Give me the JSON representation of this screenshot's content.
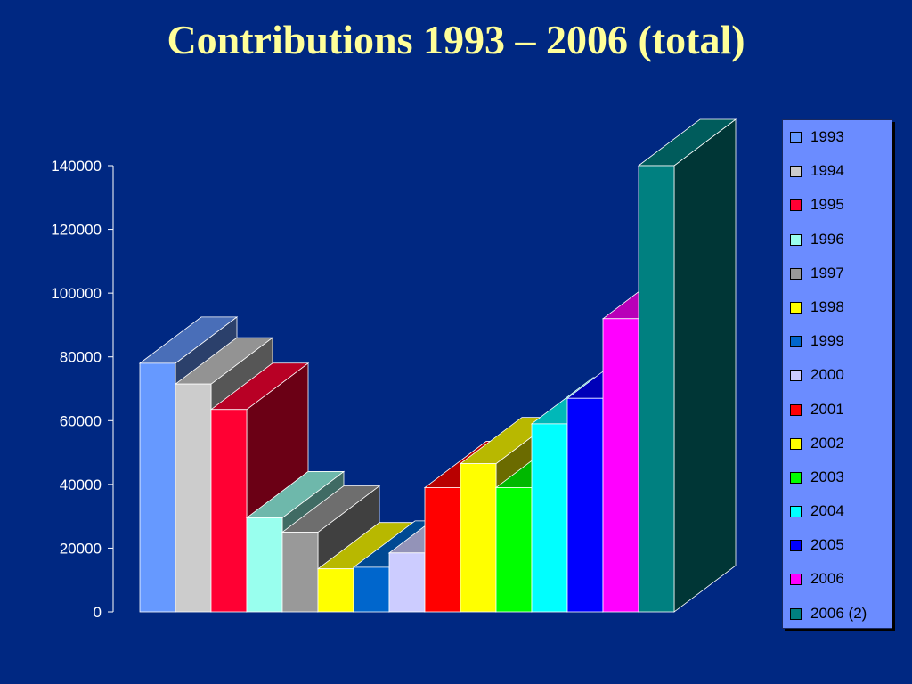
{
  "chart_data": {
    "type": "bar",
    "title": "Contributions 1993 – 2006 (total)",
    "categories": [
      "1993",
      "1994",
      "1995",
      "1996",
      "1997",
      "1998",
      "1999",
      "2000",
      "2001",
      "2002",
      "2003",
      "2004",
      "2005",
      "2006",
      "2006 (2)"
    ],
    "values": [
      78000,
      71500,
      63500,
      29500,
      25000,
      13500,
      14000,
      18500,
      39000,
      46500,
      39000,
      59000,
      67000,
      92000,
      140000
    ],
    "colors": [
      "#6699FF",
      "#CCCCCC",
      "#FF0033",
      "#99FFEE",
      "#999999",
      "#FFFF00",
      "#0066CC",
      "#CCCCFF",
      "#FF0000",
      "#FFFF00",
      "#00FF00",
      "#00FFFF",
      "#0000FF",
      "#FF00FF",
      "#008080"
    ],
    "ylim": [
      0,
      140000
    ],
    "yticks": [
      "0",
      "20000",
      "40000",
      "60000",
      "80000",
      "100000",
      "120000",
      "140000"
    ],
    "ytick_values": [
      0,
      20000,
      40000,
      60000,
      80000,
      100000,
      120000,
      140000
    ],
    "xlabel": "",
    "ylabel": "",
    "legend_position": "right",
    "grid": false,
    "style": "3d"
  }
}
